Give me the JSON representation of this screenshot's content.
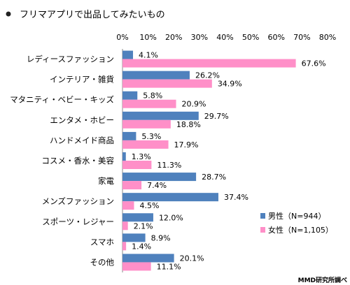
{
  "chart_data": {
    "type": "bar",
    "orientation": "horizontal",
    "title": "フリマアプリで出品してみたいもの",
    "categories": [
      "レディースファッション",
      "インテリア・雑貨",
      "マタニティ・ベビー・キッズ",
      "エンタメ・ホビー",
      "ハンドメイド商品",
      "コスメ・香水・美容",
      "家電",
      "メンズファッション",
      "スポーツ・レジャー",
      "スマホ",
      "その他"
    ],
    "series": [
      {
        "name": "男性（N=944）",
        "color": "#4f81bd",
        "values": [
          4.1,
          26.2,
          5.8,
          29.7,
          5.3,
          1.3,
          28.7,
          37.4,
          12.0,
          8.9,
          20.1
        ],
        "labels": [
          "4.1%",
          "26.2%",
          "5.8%",
          "29.7%",
          "5.3%",
          "1.3%",
          "28.7%",
          "37.4%",
          "12.0%",
          "8.9%",
          "20.1%"
        ]
      },
      {
        "name": "女性（N=1,105）",
        "color": "#ff8fc8",
        "values": [
          67.6,
          34.9,
          20.9,
          18.8,
          17.9,
          11.3,
          7.4,
          4.5,
          2.1,
          1.4,
          11.1
        ],
        "labels": [
          "67.6%",
          "34.9%",
          "20.9%",
          "18.8%",
          "17.9%",
          "11.3%",
          "7.4%",
          "4.5%",
          "2.1%",
          "1.4%",
          "11.1%"
        ]
      }
    ],
    "xticks": [
      "0%",
      "10%",
      "20%",
      "30%",
      "40%",
      "50%",
      "60%",
      "70%",
      "80%"
    ],
    "xlim": [
      0,
      80
    ],
    "grid": false,
    "legend_position": "bottom-right"
  },
  "source": "MMD研究所調べ"
}
